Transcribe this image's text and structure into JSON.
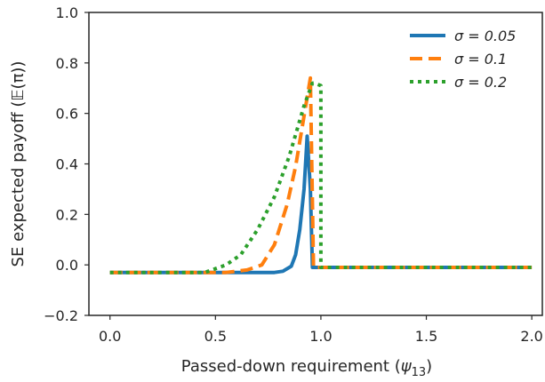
{
  "chart_data": {
    "type": "line",
    "xlabel": "Passed-down requirement (ψ13)",
    "xlabel_main": "Passed-down requirement (",
    "xlabel_sym": "ψ",
    "xlabel_sub": "13",
    "xlabel_close": ")",
    "ylabel": "SE expected payoff (𝔼(π))",
    "xlim": [
      -0.1,
      2.05
    ],
    "ylim": [
      -0.2,
      1.0
    ],
    "xticks": [
      0.0,
      0.5,
      1.0,
      1.5,
      2.0
    ],
    "xtick_labels": [
      "0.0",
      "0.5",
      "1.0",
      "1.5",
      "2.0"
    ],
    "yticks": [
      -0.2,
      0.0,
      0.2,
      0.4,
      0.6,
      0.8,
      1.0
    ],
    "ytick_labels": [
      "−0.2",
      "0.0",
      "0.2",
      "0.4",
      "0.6",
      "0.8",
      "1.0"
    ],
    "grid": false,
    "legend_position": "top-right",
    "series": [
      {
        "name": "σ = 0.05",
        "color": "#1f77b4",
        "dash": "solid",
        "x": [
          0.0,
          0.78,
          0.82,
          0.86,
          0.88,
          0.9,
          0.92,
          0.935,
          0.95,
          0.96,
          2.0
        ],
        "y": [
          -0.03,
          -0.03,
          -0.025,
          -0.005,
          0.04,
          0.14,
          0.3,
          0.51,
          0.3,
          -0.01,
          -0.01
        ]
      },
      {
        "name": "σ = 0.1",
        "color": "#ff7f0e",
        "dash": "dashed",
        "x": [
          0.0,
          0.55,
          0.65,
          0.72,
          0.78,
          0.84,
          0.88,
          0.92,
          0.95,
          0.965,
          2.0
        ],
        "y": [
          -0.03,
          -0.03,
          -0.02,
          0.0,
          0.08,
          0.24,
          0.39,
          0.59,
          0.74,
          -0.01,
          -0.01
        ]
      },
      {
        "name": "σ = 0.2",
        "color": "#2ca02c",
        "dash": "dotted",
        "x": [
          0.0,
          0.45,
          0.55,
          0.62,
          0.7,
          0.78,
          0.85,
          0.92,
          0.96,
          0.97,
          1.0,
          1.0,
          2.0
        ],
        "y": [
          -0.03,
          -0.03,
          0.0,
          0.04,
          0.14,
          0.27,
          0.43,
          0.63,
          0.72,
          0.72,
          0.71,
          -0.01,
          -0.01
        ]
      }
    ]
  }
}
